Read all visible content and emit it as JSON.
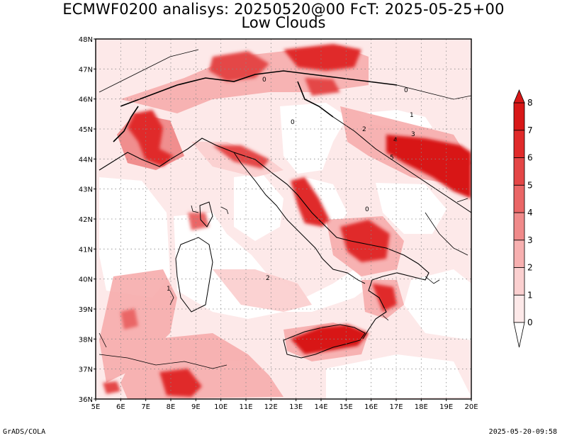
{
  "title": {
    "line1": "ECMWF0200 analisys: 20250520@00 FcT: 2025-05-25+00",
    "line2": "Low Clouds"
  },
  "footer": {
    "left": "GrADS/COLA",
    "right": "2025-05-20-09:58"
  },
  "map": {
    "lon_range": [
      5,
      20
    ],
    "lat_range": [
      36,
      48
    ],
    "x_ticks": [
      "5E",
      "6E",
      "7E",
      "8E",
      "9E",
      "10E",
      "11E",
      "12E",
      "13E",
      "14E",
      "15E",
      "16E",
      "17E",
      "18E",
      "19E",
      "20E"
    ],
    "y_ticks": [
      "36N",
      "37N",
      "38N",
      "39N",
      "40N",
      "41N",
      "42N",
      "43N",
      "44N",
      "45N",
      "46N",
      "47N",
      "48N"
    ],
    "grid": "dotted"
  },
  "colorbar": {
    "levels": [
      "0",
      "1",
      "2",
      "3",
      "4",
      "5",
      "6",
      "7",
      "8"
    ],
    "colors": [
      "#fde9e9",
      "#fbd0d0",
      "#f7b0b0",
      "#f08a8a",
      "#ea6666",
      "#e44646",
      "#e02a2a",
      "#d81818"
    ]
  },
  "contour_labels": [
    "0",
    "0",
    "0",
    "1",
    "1",
    "2",
    "2",
    "3",
    "4",
    "5",
    "0"
  ]
}
